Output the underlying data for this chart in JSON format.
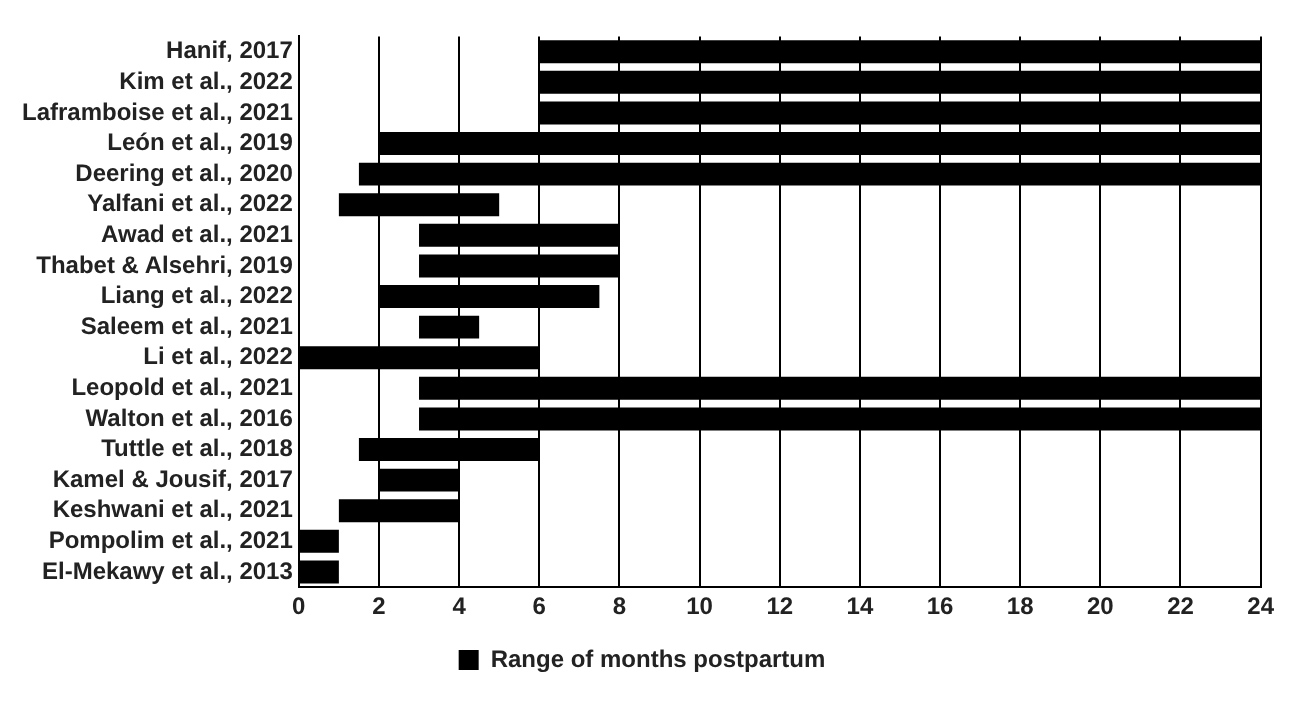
{
  "chart_data": {
    "type": "bar",
    "orientation": "horizontal",
    "categories": [
      "Hanif, 2017",
      "Kim et al., 2022",
      "Laframboise et al., 2021",
      "León et al., 2019",
      "Deering et al., 2020",
      "Yalfani et al., 2022",
      "Awad et al., 2021",
      "Thabet & Alsehri, 2019",
      "Liang et al., 2022",
      "Saleem et al., 2021",
      "Li et al., 2022",
      "Leopold et al., 2021",
      "Walton et al., 2016",
      "Tuttle et al., 2018",
      "Kamel & Jousif, 2017",
      "Keshwani et al., 2021",
      "Pompolim et al., 2021",
      "El-Mekawy et al., 2013"
    ],
    "series": [
      {
        "name": "Range of months postpartum",
        "color": "#000000",
        "base": [
          6,
          6,
          6,
          2,
          1.5,
          1,
          3,
          3,
          2,
          3,
          0,
          3,
          3,
          1.5,
          2,
          1,
          0,
          0
        ],
        "values": [
          18,
          18,
          18,
          22,
          22.5,
          4,
          5,
          5,
          5.5,
          1.5,
          6,
          21,
          21,
          4.5,
          2,
          3,
          1,
          1
        ]
      }
    ],
    "xlim": [
      0,
      24
    ],
    "xticks": [
      0,
      2,
      4,
      6,
      8,
      10,
      12,
      14,
      16,
      18,
      20,
      22,
      24
    ],
    "grid": "x",
    "legend": "bottom"
  }
}
